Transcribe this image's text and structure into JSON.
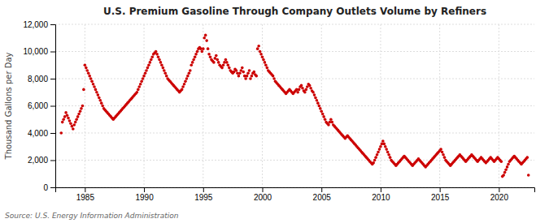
{
  "chart_data": {
    "type": "scatter",
    "title": "U.S. Premium Gasoline Through Company Outlets Volume by Refiners",
    "ylabel": "Thousand Gallons per Day",
    "annotations": [
      "Source: U.S. Energy Information Administration"
    ],
    "color": "#CC0000",
    "grid": true,
    "xlim": [
      1982.5,
      2023.0
    ],
    "xticks": [
      1985,
      1990,
      1995,
      2000,
      2005,
      2010,
      2015,
      2020
    ],
    "ylim": [
      0,
      12000
    ],
    "yticks": [
      0,
      {
        "value": 2000,
        "label": "2,000"
      },
      {
        "value": 4000,
        "label": "4,000"
      },
      {
        "value": 6000,
        "label": "6,000"
      },
      {
        "value": 8000,
        "label": "8,000"
      },
      {
        "value": 10000,
        "label": "10,000"
      },
      {
        "value": 12000,
        "label": "12,000"
      }
    ],
    "x": [
      1983.0,
      1983.1,
      1983.2,
      1983.3,
      1983.4,
      1983.5,
      1983.6,
      1983.7,
      1983.8,
      1983.9,
      1984.0,
      1984.1,
      1984.2,
      1984.3,
      1984.4,
      1984.5,
      1984.6,
      1984.7,
      1984.8,
      1984.9,
      1985.0,
      1985.1,
      1985.2,
      1985.3,
      1985.4,
      1985.5,
      1985.6,
      1985.7,
      1985.8,
      1985.9,
      1986.0,
      1986.1,
      1986.2,
      1986.3,
      1986.4,
      1986.5,
      1986.6,
      1986.7,
      1986.8,
      1986.9,
      1987.0,
      1987.1,
      1987.2,
      1987.3,
      1987.4,
      1987.5,
      1987.6,
      1987.7,
      1987.8,
      1987.9,
      1988.0,
      1988.1,
      1988.2,
      1988.3,
      1988.4,
      1988.5,
      1988.6,
      1988.7,
      1988.8,
      1988.9,
      1989.0,
      1989.1,
      1989.2,
      1989.3,
      1989.4,
      1989.5,
      1989.6,
      1989.7,
      1989.8,
      1989.9,
      1990.0,
      1990.1,
      1990.2,
      1990.3,
      1990.4,
      1990.5,
      1990.6,
      1990.7,
      1990.8,
      1990.9,
      1991.0,
      1991.1,
      1991.2,
      1991.3,
      1991.4,
      1991.5,
      1991.6,
      1991.7,
      1991.8,
      1991.9,
      1992.0,
      1992.1,
      1992.2,
      1992.3,
      1992.4,
      1992.5,
      1992.6,
      1992.7,
      1992.8,
      1992.9,
      1993.0,
      1993.1,
      1993.2,
      1993.3,
      1993.4,
      1993.5,
      1993.6,
      1993.7,
      1993.8,
      1993.9,
      1994.0,
      1994.1,
      1994.2,
      1994.3,
      1994.4,
      1994.5,
      1994.6,
      1994.7,
      1994.8,
      1994.9,
      1995.0,
      1995.1,
      1995.2,
      1995.3,
      1995.4,
      1995.5,
      1995.6,
      1995.7,
      1995.8,
      1995.9,
      1996.0,
      1996.1,
      1996.2,
      1996.3,
      1996.4,
      1996.5,
      1996.6,
      1996.7,
      1996.8,
      1996.9,
      1997.0,
      1997.1,
      1997.2,
      1997.3,
      1997.4,
      1997.5,
      1997.6,
      1997.7,
      1997.8,
      1997.9,
      1998.0,
      1998.1,
      1998.2,
      1998.3,
      1998.4,
      1998.5,
      1998.6,
      1998.7,
      1998.8,
      1998.9,
      1999.0,
      1999.1,
      1999.2,
      1999.3,
      1999.4,
      1999.5,
      1999.6,
      1999.7,
      1999.8,
      1999.9,
      2000.0,
      2000.1,
      2000.2,
      2000.3,
      2000.4,
      2000.5,
      2000.6,
      2000.7,
      2000.8,
      2000.9,
      2001.0,
      2001.1,
      2001.2,
      2001.3,
      2001.4,
      2001.5,
      2001.6,
      2001.7,
      2001.8,
      2001.9,
      2002.0,
      2002.1,
      2002.2,
      2002.3,
      2002.4,
      2002.5,
      2002.6,
      2002.7,
      2002.8,
      2002.9,
      2003.0,
      2003.1,
      2003.2,
      2003.3,
      2003.4,
      2003.5,
      2003.6,
      2003.7,
      2003.8,
      2003.9,
      2004.0,
      2004.1,
      2004.2,
      2004.3,
      2004.4,
      2004.5,
      2004.6,
      2004.7,
      2004.8,
      2004.9,
      2005.0,
      2005.1,
      2005.2,
      2005.3,
      2005.4,
      2005.5,
      2005.6,
      2005.7,
      2005.8,
      2005.9,
      2006.0,
      2006.1,
      2006.2,
      2006.3,
      2006.4,
      2006.5,
      2006.6,
      2006.7,
      2006.8,
      2006.9,
      2007.0,
      2007.1,
      2007.2,
      2007.3,
      2007.4,
      2007.5,
      2007.6,
      2007.7,
      2007.8,
      2007.9,
      2008.0,
      2008.1,
      2008.2,
      2008.3,
      2008.4,
      2008.5,
      2008.6,
      2008.7,
      2008.8,
      2008.9,
      2009.0,
      2009.1,
      2009.2,
      2009.3,
      2009.4,
      2009.5,
      2009.6,
      2009.7,
      2009.8,
      2009.9,
      2010.0,
      2010.1,
      2010.2,
      2010.3,
      2010.4,
      2010.5,
      2010.6,
      2010.7,
      2010.8,
      2010.9,
      2011.0,
      2011.1,
      2011.2,
      2011.3,
      2011.4,
      2011.5,
      2011.6,
      2011.7,
      2011.8,
      2011.9,
      2012.0,
      2012.1,
      2012.2,
      2012.3,
      2012.4,
      2012.5,
      2012.6,
      2012.7,
      2012.8,
      2012.9,
      2013.0,
      2013.1,
      2013.2,
      2013.3,
      2013.4,
      2013.5,
      2013.6,
      2013.7,
      2013.8,
      2013.9,
      2014.0,
      2014.1,
      2014.2,
      2014.3,
      2014.4,
      2014.5,
      2014.6,
      2014.7,
      2014.8,
      2014.9,
      2015.0,
      2015.1,
      2015.2,
      2015.3,
      2015.4,
      2015.5,
      2015.6,
      2015.7,
      2015.8,
      2015.9,
      2016.0,
      2016.1,
      2016.2,
      2016.3,
      2016.4,
      2016.5,
      2016.6,
      2016.7,
      2016.8,
      2016.9,
      2017.0,
      2017.1,
      2017.2,
      2017.3,
      2017.4,
      2017.5,
      2017.6,
      2017.7,
      2017.8,
      2017.9,
      2018.0,
      2018.1,
      2018.2,
      2018.3,
      2018.4,
      2018.5,
      2018.6,
      2018.7,
      2018.8,
      2018.9,
      2019.0,
      2019.1,
      2019.2,
      2019.3,
      2019.4,
      2019.5,
      2019.6,
      2019.7,
      2019.8,
      2019.9,
      2020.0,
      2020.1,
      2020.2,
      2020.3,
      2020.4,
      2020.5,
      2020.6,
      2020.7,
      2020.8,
      2020.9,
      2021.0,
      2021.1,
      2021.2,
      2021.3,
      2021.4,
      2021.5,
      2021.6,
      2021.7,
      2021.8,
      2021.9,
      2022.0,
      2022.1,
      2022.2,
      2022.3,
      2022.4,
      2022.5
    ],
    "values": [
      4000,
      4800,
      5000,
      5200,
      5500,
      5300,
      5100,
      4900,
      4700,
      4500,
      4300,
      4600,
      4800,
      5000,
      5200,
      5400,
      5600,
      5800,
      6000,
      7200,
      9000,
      8800,
      8600,
      8400,
      8200,
      8000,
      7800,
      7600,
      7400,
      7200,
      7000,
      6800,
      6600,
      6400,
      6200,
      6000,
      5800,
      5700,
      5600,
      5500,
      5400,
      5300,
      5200,
      5100,
      5000,
      5100,
      5200,
      5300,
      5400,
      5500,
      5600,
      5700,
      5800,
      5900,
      6000,
      6100,
      6200,
      6300,
      6400,
      6500,
      6600,
      6700,
      6800,
      6900,
      7000,
      7200,
      7400,
      7600,
      7800,
      8000,
      8200,
      8400,
      8600,
      8800,
      9000,
      9200,
      9400,
      9600,
      9800,
      9900,
      10000,
      9800,
      9600,
      9400,
      9200,
      9000,
      8800,
      8600,
      8400,
      8200,
      8000,
      7900,
      7800,
      7700,
      7600,
      7500,
      7400,
      7300,
      7200,
      7100,
      7000,
      7100,
      7200,
      7400,
      7600,
      7800,
      8000,
      8200,
      8400,
      8600,
      9000,
      9200,
      9400,
      9600,
      9800,
      10000,
      10200,
      10300,
      10200,
      10000,
      10200,
      11000,
      11200,
      10800,
      10200,
      9800,
      9600,
      9400,
      9300,
      9200,
      9500,
      9700,
      9400,
      9200,
      9000,
      8900,
      8800,
      9000,
      9200,
      9400,
      9200,
      9000,
      8800,
      8600,
      8500,
      8400,
      8500,
      8700,
      8600,
      8400,
      8200,
      8400,
      8600,
      8800,
      8500,
      8200,
      8000,
      8200,
      8400,
      8600,
      8000,
      8200,
      8400,
      8500,
      8300,
      8200,
      10200,
      10400,
      10000,
      9800,
      9600,
      9400,
      9200,
      9000,
      8800,
      8600,
      8500,
      8400,
      8300,
      8200,
      8000,
      7800,
      7700,
      7600,
      7500,
      7400,
      7300,
      7200,
      7100,
      7000,
      6900,
      7000,
      7100,
      7200,
      7100,
      7000,
      6900,
      7000,
      7100,
      7200,
      7000,
      7200,
      7400,
      7500,
      7300,
      7100,
      7000,
      7200,
      7400,
      7600,
      7500,
      7300,
      7100,
      7000,
      6800,
      6600,
      6400,
      6200,
      6000,
      5800,
      5600,
      5400,
      5200,
      5000,
      4800,
      4700,
      4600,
      4800,
      5000,
      4800,
      4600,
      4500,
      4400,
      4300,
      4200,
      4100,
      4000,
      3900,
      3800,
      3700,
      3600,
      3700,
      3800,
      3700,
      3600,
      3500,
      3400,
      3300,
      3200,
      3100,
      3000,
      2900,
      2800,
      2700,
      2600,
      2500,
      2400,
      2300,
      2200,
      2100,
      2000,
      1900,
      1800,
      1700,
      1800,
      2000,
      2200,
      2400,
      2600,
      2800,
      3000,
      3200,
      3400,
      3200,
      3000,
      2800,
      2600,
      2400,
      2200,
      2000,
      1900,
      1800,
      1700,
      1600,
      1700,
      1800,
      1900,
      2000,
      2100,
      2200,
      2300,
      2200,
      2100,
      2000,
      1900,
      1800,
      1700,
      1600,
      1700,
      1800,
      1900,
      2000,
      2100,
      2000,
      1900,
      1800,
      1700,
      1600,
      1500,
      1600,
      1700,
      1800,
      1900,
      2000,
      2100,
      2200,
      2300,
      2400,
      2500,
      2600,
      2700,
      2800,
      2600,
      2400,
      2200,
      2000,
      1900,
      1800,
      1700,
      1600,
      1700,
      1800,
      1900,
      2000,
      2100,
      2200,
      2300,
      2400,
      2300,
      2200,
      2100,
      2000,
      1900,
      2000,
      2100,
      2200,
      2300,
      2400,
      2300,
      2200,
      2100,
      2000,
      1900,
      2000,
      2100,
      2200,
      2100,
      2000,
      1900,
      1800,
      1900,
      2000,
      2100,
      2200,
      2100,
      2000,
      1900,
      2000,
      2100,
      2200,
      2100,
      2000,
      1900,
      800,
      900,
      1100,
      1300,
      1500,
      1700,
      1900,
      2000,
      2100,
      2200,
      2300,
      2200,
      2100,
      2000,
      1900,
      1800,
      1700,
      1800,
      1900,
      2000,
      2100,
      2200,
      900
    ]
  }
}
